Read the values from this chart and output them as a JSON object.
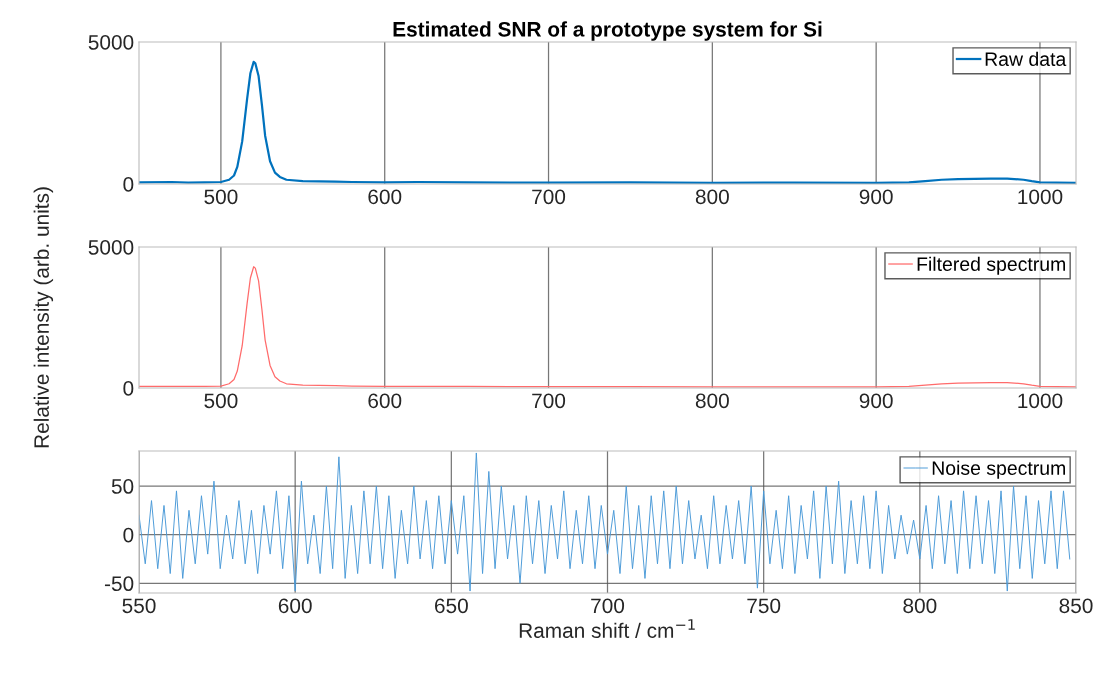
{
  "chart_data": [
    {
      "type": "line",
      "title": "Estimated SNR of a prototype system for Si",
      "xlim": [
        450,
        1022
      ],
      "ylim": [
        0,
        5000
      ],
      "xticks": [
        500,
        600,
        700,
        800,
        900,
        1000
      ],
      "yticks": [
        0,
        5000
      ],
      "grid": "x",
      "legend": "top right",
      "series": [
        {
          "name": "Raw data",
          "color": "#0072bd",
          "x": [
            450,
            470,
            480,
            490,
            500,
            505,
            508,
            510,
            513,
            516,
            518,
            520,
            521,
            523,
            525,
            527,
            530,
            533,
            536,
            540,
            550,
            570,
            580,
            600,
            620,
            650,
            680,
            700,
            750,
            800,
            850,
            900,
            920,
            930,
            940,
            950,
            960,
            970,
            980,
            990,
            995,
            1000,
            1010,
            1022
          ],
          "values": [
            60,
            70,
            50,
            60,
            70,
            150,
            300,
            600,
            1500,
            3000,
            3900,
            4300,
            4250,
            3800,
            2800,
            1700,
            800,
            400,
            250,
            150,
            100,
            80,
            70,
            60,
            70,
            60,
            50,
            50,
            60,
            40,
            50,
            40,
            60,
            100,
            150,
            170,
            180,
            190,
            190,
            150,
            100,
            60,
            50,
            40
          ]
        }
      ]
    },
    {
      "type": "line",
      "ylabel": "Relative intensity (arb. units)",
      "xlim": [
        450,
        1022
      ],
      "ylim": [
        0,
        5000
      ],
      "xticks": [
        500,
        600,
        700,
        800,
        900,
        1000
      ],
      "yticks": [
        0,
        5000
      ],
      "grid": "x",
      "legend": "top right",
      "series": [
        {
          "name": "Filtered spectrum",
          "color": "#ff6b6b",
          "x": [
            450,
            470,
            480,
            490,
            500,
            505,
            508,
            510,
            513,
            516,
            518,
            520,
            521,
            523,
            525,
            527,
            530,
            533,
            536,
            540,
            550,
            570,
            580,
            600,
            620,
            650,
            680,
            700,
            750,
            800,
            850,
            900,
            920,
            930,
            940,
            950,
            960,
            970,
            980,
            990,
            995,
            1000,
            1010,
            1022
          ],
          "values": [
            60,
            60,
            60,
            60,
            70,
            150,
            300,
            600,
            1500,
            3000,
            3900,
            4300,
            4250,
            3800,
            2800,
            1700,
            800,
            400,
            250,
            150,
            100,
            80,
            70,
            60,
            60,
            60,
            50,
            50,
            50,
            40,
            40,
            40,
            60,
            100,
            150,
            170,
            180,
            190,
            190,
            150,
            100,
            60,
            50,
            40
          ]
        }
      ]
    },
    {
      "type": "line",
      "xlabel": "Raman shift / cm$^{−1}$",
      "xlim": [
        550,
        850
      ],
      "ylim": [
        -60,
        86
      ],
      "xticks": [
        550,
        600,
        650,
        700,
        750,
        800,
        850
      ],
      "yticks": [
        -50,
        0,
        50
      ],
      "grid": true,
      "legend": "top right",
      "series": [
        {
          "name": "Noise spectrum",
          "color": "#4a9ad8",
          "x": [
            550,
            552,
            554,
            556,
            558,
            560,
            562,
            564,
            566,
            568,
            570,
            572,
            574,
            576,
            578,
            580,
            582,
            584,
            586,
            588,
            590,
            592,
            594,
            596,
            598,
            600,
            602,
            604,
            606,
            608,
            610,
            612,
            614,
            616,
            618,
            620,
            622,
            624,
            626,
            628,
            630,
            632,
            634,
            636,
            638,
            640,
            642,
            644,
            646,
            648,
            650,
            652,
            654,
            656,
            658,
            660,
            662,
            664,
            666,
            668,
            670,
            672,
            674,
            676,
            678,
            680,
            682,
            684,
            686,
            688,
            690,
            692,
            694,
            696,
            698,
            700,
            702,
            704,
            706,
            708,
            710,
            712,
            714,
            716,
            718,
            720,
            722,
            724,
            726,
            728,
            730,
            732,
            734,
            736,
            738,
            740,
            742,
            744,
            746,
            748,
            750,
            752,
            754,
            756,
            758,
            760,
            762,
            764,
            766,
            768,
            770,
            772,
            774,
            776,
            778,
            780,
            782,
            784,
            786,
            788,
            790,
            792,
            794,
            796,
            798,
            800,
            802,
            804,
            806,
            808,
            810,
            812,
            814,
            816,
            818,
            820,
            822,
            824,
            826,
            828,
            830,
            832,
            834,
            836,
            838,
            840,
            842,
            844,
            846,
            848
          ],
          "values": [
            20,
            -30,
            35,
            -35,
            30,
            -40,
            45,
            -45,
            25,
            -30,
            40,
            -20,
            55,
            -35,
            20,
            -25,
            35,
            -30,
            25,
            -40,
            30,
            -20,
            45,
            -35,
            40,
            -58,
            55,
            -30,
            20,
            -40,
            50,
            -35,
            80,
            -45,
            30,
            -40,
            45,
            -30,
            50,
            -35,
            40,
            -45,
            25,
            -30,
            50,
            -25,
            35,
            -35,
            40,
            -30,
            35,
            -20,
            40,
            -58,
            84,
            -40,
            65,
            -35,
            50,
            -25,
            30,
            -50,
            40,
            -30,
            35,
            -40,
            30,
            -25,
            45,
            -35,
            25,
            -30,
            40,
            -35,
            30,
            -20,
            25,
            -40,
            50,
            -35,
            30,
            -45,
            40,
            -30,
            45,
            -35,
            50,
            -30,
            35,
            -25,
            20,
            -35,
            40,
            -30,
            30,
            -25,
            35,
            -30,
            50,
            -55,
            45,
            -30,
            25,
            -35,
            40,
            -40,
            30,
            -25,
            45,
            -45,
            50,
            -30,
            55,
            -40,
            35,
            -30,
            40,
            -35,
            45,
            -40,
            30,
            -25,
            20,
            -20,
            15,
            -25,
            30,
            -35,
            40,
            -30,
            35,
            -40,
            45,
            -35,
            40,
            -30,
            35,
            -40,
            45,
            -58,
            50,
            -35,
            40,
            -45,
            35,
            -30,
            45,
            -35,
            45,
            -25
          ]
        }
      ]
    }
  ]
}
